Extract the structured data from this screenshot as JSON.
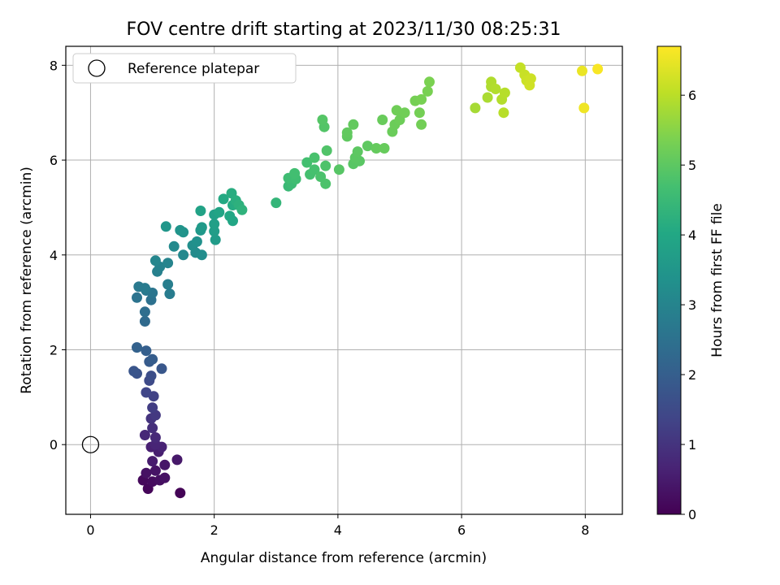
{
  "chart_data": {
    "type": "scatter",
    "title": "FOV centre drift starting at 2023/11/30 08:25:31",
    "xlabel": "Angular distance from reference (arcmin)",
    "ylabel": "Rotation from reference (arcmin)",
    "xlim": [
      -0.4,
      8.6
    ],
    "ylim": [
      -1.47,
      8.4
    ],
    "xticks": [
      0,
      2,
      4,
      6,
      8
    ],
    "yticks": [
      0,
      2,
      4,
      6,
      8
    ],
    "grid": true,
    "legend": {
      "position": "upper-left",
      "entries": [
        "Reference platepar"
      ]
    },
    "reference_point": {
      "x": 0,
      "y": 0,
      "label": "Reference platepar",
      "marker": "open-circle"
    },
    "colorbar": {
      "label": "Hours from first FF file",
      "range": [
        0,
        6.7
      ],
      "ticks": [
        0,
        1,
        2,
        3,
        4,
        5,
        6
      ],
      "colormap": "viridis"
    },
    "series": [
      {
        "points": [
          {
            "x": 1.45,
            "y": -1.02,
            "c": 0.05
          },
          {
            "x": 0.93,
            "y": -0.93,
            "c": 0.1
          },
          {
            "x": 0.85,
            "y": -0.75,
            "c": 0.15
          },
          {
            "x": 1.0,
            "y": -0.78,
            "c": 0.2
          },
          {
            "x": 1.12,
            "y": -0.75,
            "c": 0.25
          },
          {
            "x": 1.2,
            "y": -0.7,
            "c": 0.3
          },
          {
            "x": 0.9,
            "y": -0.6,
            "c": 0.3
          },
          {
            "x": 1.05,
            "y": -0.55,
            "c": 0.35
          },
          {
            "x": 1.2,
            "y": -0.43,
            "c": 0.4
          },
          {
            "x": 1.4,
            "y": -0.32,
            "c": 0.45
          },
          {
            "x": 1.0,
            "y": -0.35,
            "c": 0.5
          },
          {
            "x": 1.1,
            "y": -0.15,
            "c": 0.55
          },
          {
            "x": 0.98,
            "y": -0.05,
            "c": 0.6
          },
          {
            "x": 1.15,
            "y": -0.05,
            "c": 0.65
          },
          {
            "x": 1.05,
            "y": 0.0,
            "c": 0.7
          },
          {
            "x": 0.88,
            "y": 0.2,
            "c": 0.75
          },
          {
            "x": 1.05,
            "y": 0.15,
            "c": 0.8
          },
          {
            "x": 1.0,
            "y": 0.35,
            "c": 0.9
          },
          {
            "x": 0.98,
            "y": 0.55,
            "c": 1.0
          },
          {
            "x": 1.05,
            "y": 0.62,
            "c": 1.1
          },
          {
            "x": 1.0,
            "y": 0.78,
            "c": 1.2
          },
          {
            "x": 1.02,
            "y": 1.02,
            "c": 1.3
          },
          {
            "x": 0.9,
            "y": 1.1,
            "c": 1.4
          },
          {
            "x": 0.95,
            "y": 1.35,
            "c": 1.5
          },
          {
            "x": 0.98,
            "y": 1.45,
            "c": 1.6
          },
          {
            "x": 0.75,
            "y": 1.5,
            "c": 1.7
          },
          {
            "x": 0.7,
            "y": 1.55,
            "c": 1.75
          },
          {
            "x": 1.15,
            "y": 1.6,
            "c": 1.8
          },
          {
            "x": 0.95,
            "y": 1.75,
            "c": 1.9
          },
          {
            "x": 1.0,
            "y": 1.8,
            "c": 1.95
          },
          {
            "x": 0.9,
            "y": 1.98,
            "c": 2.0
          },
          {
            "x": 0.75,
            "y": 2.05,
            "c": 2.1
          },
          {
            "x": 0.88,
            "y": 2.6,
            "c": 2.3
          },
          {
            "x": 0.88,
            "y": 2.8,
            "c": 2.4
          },
          {
            "x": 0.98,
            "y": 3.05,
            "c": 2.5
          },
          {
            "x": 0.75,
            "y": 3.1,
            "c": 2.55
          },
          {
            "x": 1.0,
            "y": 3.2,
            "c": 2.6
          },
          {
            "x": 0.9,
            "y": 3.25,
            "c": 2.65
          },
          {
            "x": 0.78,
            "y": 3.33,
            "c": 2.7
          },
          {
            "x": 0.88,
            "y": 3.3,
            "c": 2.75
          },
          {
            "x": 1.28,
            "y": 3.18,
            "c": 2.8
          },
          {
            "x": 1.25,
            "y": 3.38,
            "c": 2.85
          },
          {
            "x": 1.08,
            "y": 3.65,
            "c": 2.9
          },
          {
            "x": 1.12,
            "y": 3.75,
            "c": 2.95
          },
          {
            "x": 1.25,
            "y": 3.83,
            "c": 3.0
          },
          {
            "x": 1.05,
            "y": 3.88,
            "c": 3.05
          },
          {
            "x": 1.5,
            "y": 4.0,
            "c": 3.1
          },
          {
            "x": 1.35,
            "y": 4.18,
            "c": 3.15
          },
          {
            "x": 1.7,
            "y": 4.05,
            "c": 3.2
          },
          {
            "x": 1.8,
            "y": 4.0,
            "c": 3.25
          },
          {
            "x": 1.65,
            "y": 4.2,
            "c": 3.3
          },
          {
            "x": 1.72,
            "y": 4.28,
            "c": 3.35
          },
          {
            "x": 1.5,
            "y": 4.48,
            "c": 3.4
          },
          {
            "x": 1.45,
            "y": 4.52,
            "c": 3.45
          },
          {
            "x": 1.22,
            "y": 4.6,
            "c": 3.5
          },
          {
            "x": 1.78,
            "y": 4.52,
            "c": 3.55
          },
          {
            "x": 1.8,
            "y": 4.58,
            "c": 3.6
          },
          {
            "x": 2.02,
            "y": 4.32,
            "c": 3.65
          },
          {
            "x": 2.0,
            "y": 4.5,
            "c": 3.7
          },
          {
            "x": 2.0,
            "y": 4.65,
            "c": 3.75
          },
          {
            "x": 2.0,
            "y": 4.85,
            "c": 3.8
          },
          {
            "x": 1.78,
            "y": 4.93,
            "c": 3.85
          },
          {
            "x": 2.08,
            "y": 4.9,
            "c": 3.9
          },
          {
            "x": 2.3,
            "y": 4.72,
            "c": 3.95
          },
          {
            "x": 2.25,
            "y": 4.82,
            "c": 4.0
          },
          {
            "x": 2.15,
            "y": 5.18,
            "c": 4.05
          },
          {
            "x": 2.3,
            "y": 5.05,
            "c": 4.1
          },
          {
            "x": 2.28,
            "y": 5.3,
            "c": 4.15
          },
          {
            "x": 2.35,
            "y": 5.15,
            "c": 4.2
          },
          {
            "x": 2.4,
            "y": 5.05,
            "c": 4.25
          },
          {
            "x": 2.45,
            "y": 4.95,
            "c": 4.3
          },
          {
            "x": 3.0,
            "y": 5.1,
            "c": 4.4
          },
          {
            "x": 3.2,
            "y": 5.45,
            "c": 4.5
          },
          {
            "x": 3.25,
            "y": 5.5,
            "c": 4.55
          },
          {
            "x": 3.2,
            "y": 5.62,
            "c": 4.6
          },
          {
            "x": 3.32,
            "y": 5.6,
            "c": 4.62
          },
          {
            "x": 3.3,
            "y": 5.72,
            "c": 4.65
          },
          {
            "x": 3.5,
            "y": 5.95,
            "c": 4.68
          },
          {
            "x": 3.55,
            "y": 5.7,
            "c": 4.7
          },
          {
            "x": 3.62,
            "y": 5.8,
            "c": 4.72
          },
          {
            "x": 3.62,
            "y": 6.05,
            "c": 4.75
          },
          {
            "x": 3.72,
            "y": 5.65,
            "c": 4.78
          },
          {
            "x": 3.8,
            "y": 5.5,
            "c": 4.8
          },
          {
            "x": 3.8,
            "y": 5.88,
            "c": 4.82
          },
          {
            "x": 3.82,
            "y": 6.2,
            "c": 4.85
          },
          {
            "x": 3.78,
            "y": 6.7,
            "c": 4.88
          },
          {
            "x": 3.75,
            "y": 6.85,
            "c": 4.9
          },
          {
            "x": 4.02,
            "y": 5.8,
            "c": 4.92
          },
          {
            "x": 4.25,
            "y": 5.92,
            "c": 4.94
          },
          {
            "x": 4.35,
            "y": 5.98,
            "c": 4.96
          },
          {
            "x": 4.28,
            "y": 6.05,
            "c": 4.98
          },
          {
            "x": 4.32,
            "y": 6.18,
            "c": 5.0
          },
          {
            "x": 4.48,
            "y": 6.3,
            "c": 5.02
          },
          {
            "x": 4.15,
            "y": 6.5,
            "c": 5.04
          },
          {
            "x": 4.15,
            "y": 6.58,
            "c": 5.06
          },
          {
            "x": 4.25,
            "y": 6.75,
            "c": 5.08
          },
          {
            "x": 4.62,
            "y": 6.25,
            "c": 5.1
          },
          {
            "x": 4.75,
            "y": 6.25,
            "c": 5.12
          },
          {
            "x": 4.72,
            "y": 6.85,
            "c": 5.14
          },
          {
            "x": 4.88,
            "y": 6.6,
            "c": 5.16
          },
          {
            "x": 4.92,
            "y": 6.75,
            "c": 5.18
          },
          {
            "x": 5.0,
            "y": 6.85,
            "c": 5.2
          },
          {
            "x": 4.95,
            "y": 7.05,
            "c": 5.22
          },
          {
            "x": 5.08,
            "y": 7.0,
            "c": 5.24
          },
          {
            "x": 5.35,
            "y": 6.75,
            "c": 5.26
          },
          {
            "x": 5.32,
            "y": 7.0,
            "c": 5.28
          },
          {
            "x": 5.25,
            "y": 7.25,
            "c": 5.3
          },
          {
            "x": 5.35,
            "y": 7.28,
            "c": 5.32
          },
          {
            "x": 5.45,
            "y": 7.45,
            "c": 5.34
          },
          {
            "x": 5.48,
            "y": 7.65,
            "c": 5.36
          },
          {
            "x": 6.22,
            "y": 7.1,
            "c": 5.8
          },
          {
            "x": 6.42,
            "y": 7.32,
            "c": 5.85
          },
          {
            "x": 6.48,
            "y": 7.55,
            "c": 5.88
          },
          {
            "x": 6.48,
            "y": 7.65,
            "c": 5.9
          },
          {
            "x": 6.55,
            "y": 7.5,
            "c": 5.92
          },
          {
            "x": 6.65,
            "y": 7.28,
            "c": 5.94
          },
          {
            "x": 6.7,
            "y": 7.42,
            "c": 5.96
          },
          {
            "x": 6.68,
            "y": 7.0,
            "c": 5.98
          },
          {
            "x": 6.95,
            "y": 7.95,
            "c": 6.1
          },
          {
            "x": 7.02,
            "y": 7.8,
            "c": 6.15
          },
          {
            "x": 7.05,
            "y": 7.68,
            "c": 6.18
          },
          {
            "x": 7.12,
            "y": 7.72,
            "c": 6.2
          },
          {
            "x": 7.1,
            "y": 7.58,
            "c": 6.22
          },
          {
            "x": 7.95,
            "y": 7.88,
            "c": 6.5
          },
          {
            "x": 7.98,
            "y": 7.1,
            "c": 6.55
          },
          {
            "x": 8.2,
            "y": 7.92,
            "c": 6.65
          }
        ]
      }
    ]
  }
}
